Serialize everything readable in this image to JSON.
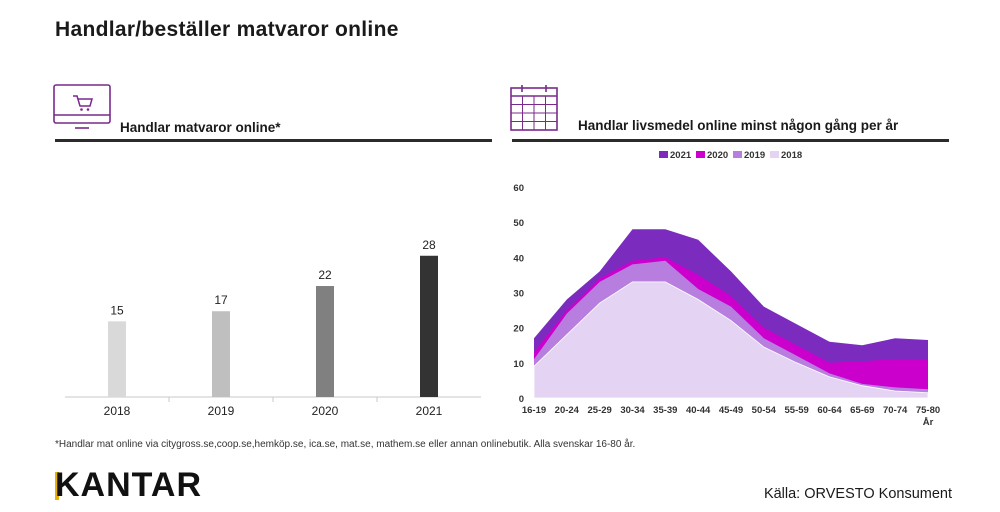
{
  "title": "Handlar/beställer matvaror online",
  "left_panel": {
    "title": "Handlar matvaror online*"
  },
  "right_panel": {
    "title": "Handlar livsmedel online minst någon gång per år"
  },
  "footnote": "*Handlar mat online via citygross.se,coop.se,hemköp.se, ica.se, mat.se, mathem.se eller annan onlinebutik. Alla svenskar 16-80 år.",
  "logo_text": "KANTAR",
  "source": "Källa: ORVESTO Konsument",
  "icons": {
    "left": "shopping-cart-monitor-icon",
    "right": "calendar-icon"
  },
  "colors": {
    "bar_2018": "#d9d9d9",
    "bar_2019": "#bfbfbf",
    "bar_2020": "#808080",
    "bar_2021": "#333333",
    "area_2021": "#7b2cbf",
    "area_2020": "#cc00cc",
    "area_2019": "#b77ee0",
    "area_2018": "#e5d3f3",
    "accent": "#7a2a8c",
    "brand_yellow": "#e8b000"
  },
  "chart_data": [
    {
      "type": "bar",
      "title": "Handlar matvaror online*",
      "categories": [
        "2018",
        "2019",
        "2020",
        "2021"
      ],
      "values": [
        15,
        17,
        22,
        28
      ],
      "data_labels": [
        "15",
        "17",
        "22",
        "28"
      ],
      "ylim": [
        0,
        45
      ]
    },
    {
      "type": "area",
      "title": "Handlar livsmedel online minst någon gång per år",
      "categories": [
        "16-19",
        "20-24",
        "25-29",
        "30-34",
        "35-39",
        "40-44",
        "45-49",
        "50-54",
        "55-59",
        "60-64",
        "65-69",
        "70-74",
        "75-80"
      ],
      "x_unit_label": "År",
      "ylim": [
        0,
        60
      ],
      "yticks": [
        0,
        10,
        20,
        30,
        40,
        50,
        60
      ],
      "legend_position": "top",
      "series": [
        {
          "name": "2021",
          "values": [
            17,
            28,
            36,
            48,
            48,
            45,
            36,
            26,
            21,
            16,
            15,
            17,
            16.5
          ]
        },
        {
          "name": "2020",
          "values": [
            13,
            25,
            34,
            39,
            40,
            35,
            29,
            20,
            15,
            10,
            10.5,
            11,
            11
          ]
        },
        {
          "name": "2019",
          "values": [
            11,
            24,
            33,
            38,
            39,
            31,
            26,
            17,
            12,
            7,
            4,
            3,
            2.5
          ]
        },
        {
          "name": "2018",
          "values": [
            9,
            18,
            27,
            33,
            33,
            28,
            22,
            14.5,
            10,
            6,
            3.5,
            2,
            1.5
          ]
        }
      ]
    }
  ]
}
